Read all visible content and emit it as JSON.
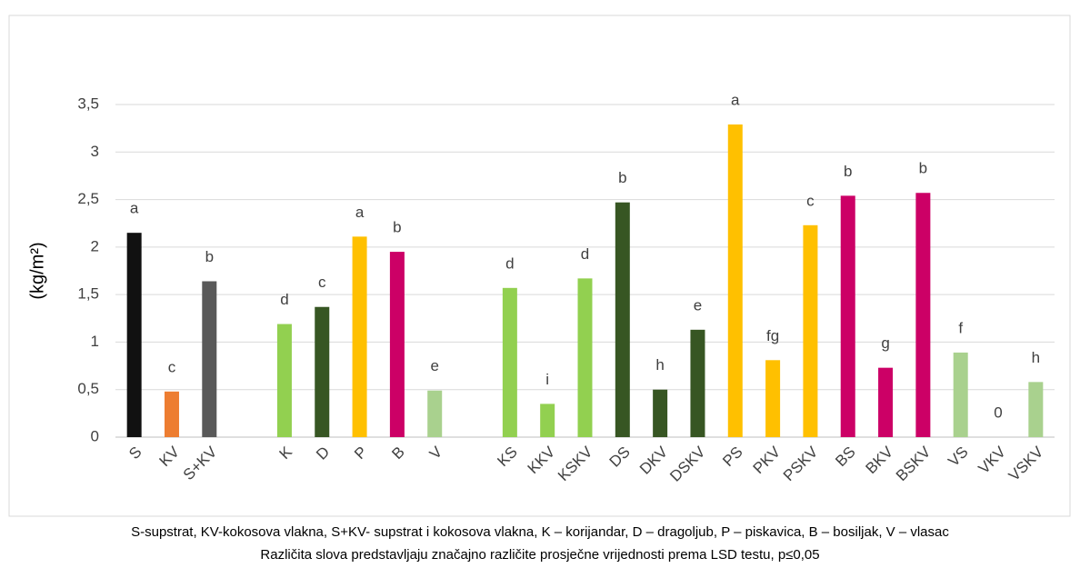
{
  "chart_data": {
    "type": "bar",
    "ylabel": "(kg/m²)",
    "categories": [
      "S",
      "KV",
      "S+KV",
      null,
      "K",
      "D",
      "P",
      "B",
      "V",
      null,
      "KS",
      "KKV",
      "KSKV",
      "DS",
      "DKV",
      "DSKV",
      "PS",
      "PKV",
      "PSKV",
      "BS",
      "BKV",
      "BSKV",
      "VS",
      "VKV",
      "VSKV"
    ],
    "values": [
      2.15,
      0.48,
      1.64,
      null,
      1.19,
      1.37,
      2.11,
      1.95,
      0.49,
      null,
      1.57,
      0.35,
      1.67,
      2.47,
      0.5,
      1.13,
      3.29,
      0.81,
      2.23,
      2.54,
      0.73,
      2.57,
      0.89,
      0,
      0.58
    ],
    "colors": [
      "#111111",
      "#ed7d31",
      "#595959",
      null,
      "#92d050",
      "#375623",
      "#ffc000",
      "#cc0066",
      "#a9d18e",
      null,
      "#92d050",
      "#92d050",
      "#92d050",
      "#375623",
      "#375623",
      "#375623",
      "#ffc000",
      "#ffc000",
      "#ffc000",
      "#cc0066",
      "#cc0066",
      "#cc0066",
      "#a9d18e",
      "#a9d18e",
      "#a9d18e"
    ],
    "letters": [
      "a",
      "c",
      "b",
      null,
      "d",
      "c",
      "a",
      "b",
      "e",
      null,
      "d",
      "i",
      "d",
      "b",
      "h",
      "e",
      "a",
      "fg",
      "c",
      "b",
      "g",
      "b",
      "f",
      "0",
      "h"
    ],
    "ylim": [
      0,
      3.5
    ],
    "yticks": [
      0,
      {
        "value": 0.5,
        "label": "0,5"
      },
      1,
      {
        "value": 1.5,
        "label": "1,5"
      },
      2,
      {
        "value": 2.5,
        "label": "2,5"
      },
      3,
      {
        "value": 3.5,
        "label": "3,5"
      }
    ],
    "grid": true,
    "notes": [
      "S-supstrat, KV-kokosova vlakna, S+KV-  supstrat i kokosova vlakna, K – korijandar, D – dragoljub, P – piskavica, B – bosiljak, V – vlasac",
      "Različita slova predstavljaju značajno različite prosječne vrijednosti prema LSD testu, p≤0,05"
    ]
  }
}
